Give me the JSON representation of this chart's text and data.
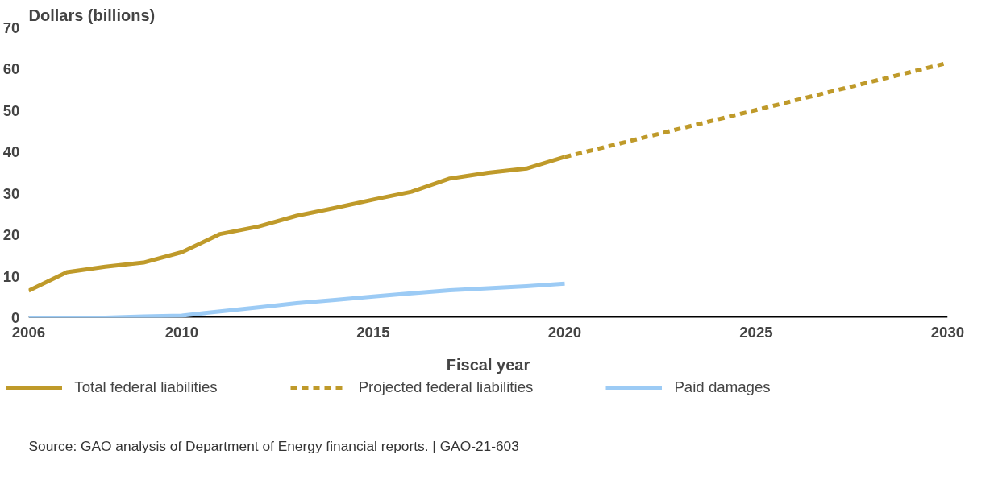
{
  "chart_data": {
    "type": "line",
    "ylabel": "Dollars (billions)",
    "xlabel": "Fiscal year",
    "x": [
      2006,
      2007,
      2008,
      2009,
      2010,
      2011,
      2012,
      2013,
      2014,
      2015,
      2016,
      2017,
      2018,
      2019,
      2020
    ],
    "series": [
      {
        "name": "Total federal liabilities",
        "color": "#bf9a2a",
        "line_style": "solid",
        "values": [
          6.5,
          11,
          12.3,
          13.3,
          15.8,
          20.2,
          22,
          24.6,
          26.5,
          28.5,
          30.4,
          33.6,
          35,
          36,
          38.8
        ]
      },
      {
        "name": "Projected federal liabilities",
        "color": "#bf9a2a",
        "line_style": "dashed",
        "x": [
          2020,
          2030
        ],
        "values": [
          38.8,
          61.5
        ]
      },
      {
        "name": "Paid damages",
        "color": "#9ccbf5",
        "line_style": "solid",
        "values": [
          0,
          0,
          0,
          0.3,
          0.5,
          1.5,
          2.5,
          3.5,
          4.3,
          5.1,
          5.9,
          6.6,
          7.1,
          7.6,
          8.2
        ]
      }
    ],
    "xlim": [
      2006,
      2030
    ],
    "xticks": [
      2006,
      2010,
      2015,
      2020,
      2025,
      2030
    ],
    "ylim": [
      0,
      70
    ],
    "yticks": [
      0,
      10,
      20,
      30,
      40,
      50,
      60,
      70
    ],
    "grid": false,
    "legend": "bottom",
    "marker": "none",
    "annotations": [
      "Source: GAO analysis of Department of Energy financial reports.  |  GAO-21-603"
    ]
  }
}
